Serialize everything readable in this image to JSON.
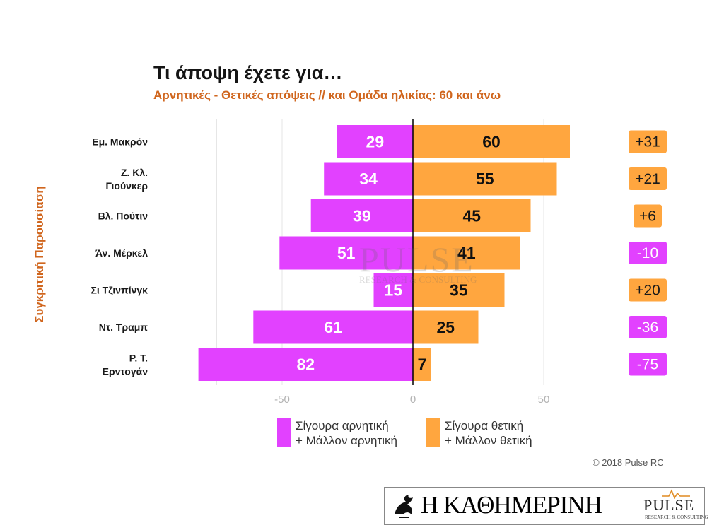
{
  "title": "Τι άποψη έχετε για…",
  "subtitle": "Αρνητικές - Θετικές απόψεις // και Ομάδα ηλικίας: 60 και άνω",
  "side_label": "Συγκριτική Παρουσίαση",
  "chart_data": {
    "type": "bar",
    "orientation": "horizontal-diverging",
    "categories": [
      [
        "Εμ. Μακρόν"
      ],
      [
        "Ζ. Κλ.",
        "Γιούνκερ"
      ],
      [
        "Βλ. Πούτιν"
      ],
      [
        "Άν. Μέρκελ"
      ],
      [
        "Σι Τζινπίνγκ"
      ],
      [
        "Ντ. Τραμπ"
      ],
      [
        "Ρ. Τ.",
        "Ερντογάν"
      ]
    ],
    "series": [
      {
        "name": "Σίγουρα αρνητική + Μάλλον αρνητική",
        "color": "#e241ff",
        "values": [
          29,
          34,
          39,
          51,
          15,
          61,
          82
        ]
      },
      {
        "name": "Σίγουρα θετική + Μάλλον θετική",
        "color": "#ffa63f",
        "values": [
          60,
          55,
          45,
          41,
          35,
          25,
          7
        ]
      }
    ],
    "difference": [
      "+31",
      "+21",
      "+6",
      "-10",
      "+20",
      "-36",
      "-75"
    ],
    "xlim": [
      -82,
      75
    ],
    "xticks": [
      -50,
      0,
      50
    ],
    "grid": true,
    "legend": "bottom"
  },
  "legend": [
    {
      "line1": "Σίγουρα αρνητική",
      "line2": "+ Μάλλον αρνητική",
      "color": "#e241ff"
    },
    {
      "line1": "Σίγουρα θετική",
      "line2": "+ Μάλλον θετική",
      "color": "#ffa63f"
    }
  ],
  "copyright": "© 2018 Pulse RC",
  "footer": {
    "newspaper": "Η ΚΑΘΗΜΕΡΙΝΗ",
    "pulse": "PULSE",
    "pulse_sub": "RESEARCH & CONSULTING"
  },
  "watermark": {
    "text": "PULSE",
    "sub": "RESEARCH & CONSULTING"
  }
}
